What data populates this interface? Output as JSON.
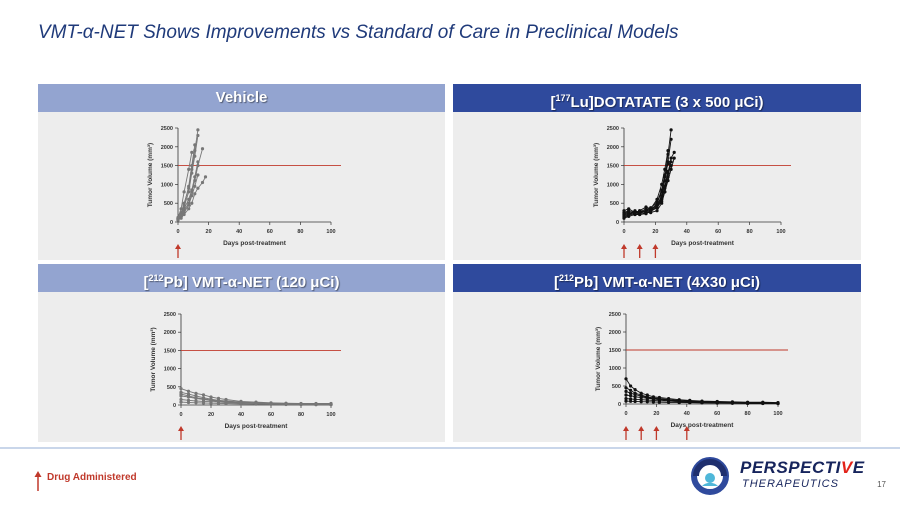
{
  "slide": {
    "title": "VMT-α-NET Shows Improvements vs Standard of Care in Preclinical Models",
    "page_number": "17",
    "legend_label": "Drug Administered",
    "logo": {
      "name_main": "PERSPECTI",
      "name_accent": "V",
      "name_end": "E",
      "subtitle": "THERAPEUTICS"
    }
  },
  "colors": {
    "dark_header": "#2f4a9d",
    "light_header": "#93a4d0",
    "arrow": "#c0392b",
    "threshold": "#c0392b",
    "panel_bg": "#ededed"
  },
  "panels": [
    {
      "header_text": "Vehicle"
    },
    {
      "header_pre": "[",
      "header_sup": "177",
      "header_post": "Lu]DOTATATE (3 x 500 μCi)"
    },
    {
      "header_pre": "[",
      "header_sup": "212",
      "header_post": "Pb] VMT-α-NET (120 μCi)"
    },
    {
      "header_pre": "[",
      "header_sup": "212",
      "header_post": "Pb] VMT-α-NET (4X30 μCi)"
    }
  ],
  "chart_data": [
    {
      "type": "line",
      "panel": "Vehicle",
      "xlabel": "Days post-treatment",
      "ylabel": "Tumor Volume (mm³)",
      "xlim": [
        0,
        100
      ],
      "ylim": [
        0,
        2500
      ],
      "xticks": [
        0,
        20,
        40,
        60,
        80,
        100
      ],
      "yticks": [
        0,
        500,
        1000,
        1500,
        2000,
        2500
      ],
      "threshold": 1500,
      "dose_days": [
        0
      ],
      "marker_color": "#777777",
      "series": [
        {
          "x": [
            0,
            2,
            4,
            7,
            9,
            11,
            13
          ],
          "y": [
            100,
            250,
            500,
            900,
            1400,
            1900,
            2450
          ]
        },
        {
          "x": [
            0,
            2,
            4,
            7,
            9,
            11,
            13
          ],
          "y": [
            80,
            200,
            400,
            800,
            1300,
            1750,
            2300
          ]
        },
        {
          "x": [
            0,
            2,
            4,
            7,
            9,
            11,
            13,
            16
          ],
          "y": [
            90,
            150,
            300,
            500,
            800,
            1100,
            1500,
            1950
          ]
        },
        {
          "x": [
            0,
            2,
            4,
            7,
            9,
            11,
            13,
            16,
            18
          ],
          "y": [
            60,
            100,
            200,
            350,
            500,
            750,
            900,
            1050,
            1200
          ]
        },
        {
          "x": [
            0,
            2,
            4,
            7,
            9
          ],
          "y": [
            120,
            350,
            800,
            1400,
            1850
          ]
        },
        {
          "x": [
            0,
            2,
            4,
            7,
            9,
            11
          ],
          "y": [
            70,
            200,
            450,
            950,
            1500,
            2050
          ]
        },
        {
          "x": [
            0,
            2,
            4,
            7,
            9,
            11,
            13
          ],
          "y": [
            50,
            120,
            250,
            450,
            700,
            950,
            1250
          ]
        },
        {
          "x": [
            0,
            2,
            4,
            7,
            9,
            11,
            13
          ],
          "y": [
            100,
            180,
            350,
            600,
            850,
            1200,
            1600
          ]
        }
      ]
    },
    {
      "type": "line",
      "panel": "[177Lu]DOTATATE (3 x 500 μCi)",
      "xlabel": "Days post-treatment",
      "ylabel": "Tumor Volume (mm³)",
      "xlim": [
        0,
        100
      ],
      "ylim": [
        0,
        2500
      ],
      "xticks": [
        0,
        20,
        40,
        60,
        80,
        100
      ],
      "yticks": [
        0,
        500,
        1000,
        1500,
        2000,
        2500
      ],
      "threshold": 1500,
      "dose_days": [
        0,
        10,
        20
      ],
      "marker_color": "#111111",
      "series": [
        {
          "x": [
            0,
            3,
            7,
            10,
            14,
            17,
            21,
            24,
            26,
            28,
            30
          ],
          "y": [
            200,
            250,
            300,
            250,
            300,
            350,
            450,
            700,
            1100,
            1600,
            2200
          ]
        },
        {
          "x": [
            0,
            3,
            7,
            10,
            14,
            17,
            21,
            24,
            26,
            28,
            30,
            32
          ],
          "y": [
            150,
            200,
            250,
            300,
            250,
            300,
            400,
            600,
            900,
            1300,
            1700,
            1850
          ]
        },
        {
          "x": [
            0,
            3,
            7,
            10,
            14,
            17,
            21,
            24,
            26,
            28,
            30
          ],
          "y": [
            250,
            300,
            200,
            250,
            350,
            300,
            500,
            800,
            1200,
            1800,
            2450
          ]
        },
        {
          "x": [
            0,
            3,
            7,
            10,
            14,
            17,
            21,
            24,
            26,
            28,
            30
          ],
          "y": [
            100,
            150,
            200,
            200,
            250,
            250,
            300,
            500,
            800,
            1200,
            1600
          ]
        },
        {
          "x": [
            0,
            3,
            7,
            10,
            14,
            17,
            21,
            24,
            26,
            28
          ],
          "y": [
            300,
            350,
            250,
            300,
            400,
            350,
            600,
            1000,
            1400,
            1900
          ]
        },
        {
          "x": [
            0,
            3,
            7,
            10,
            14,
            17,
            21,
            24,
            26,
            28,
            30
          ],
          "y": [
            180,
            220,
            260,
            230,
            280,
            330,
            420,
            650,
            950,
            1350,
            1500
          ]
        },
        {
          "x": [
            0,
            3,
            7,
            10,
            14,
            17,
            21,
            24,
            26,
            28,
            30,
            32
          ],
          "y": [
            120,
            180,
            220,
            200,
            220,
            280,
            380,
            550,
            800,
            1100,
            1400,
            1700
          ]
        },
        {
          "x": [
            0,
            3,
            7,
            10,
            14,
            17,
            21,
            24,
            26,
            28
          ],
          "y": [
            220,
            280,
            240,
            280,
            330,
            380,
            520,
            850,
            1250,
            1550
          ]
        }
      ]
    },
    {
      "type": "line",
      "panel": "[212Pb] VMT-α-NET (120 μCi)",
      "xlabel": "Days post-treatment",
      "ylabel": "Tumor Volume (mm³)",
      "xlim": [
        0,
        100
      ],
      "ylim": [
        0,
        2500
      ],
      "xticks": [
        0,
        20,
        40,
        60,
        80,
        100
      ],
      "yticks": [
        0,
        500,
        1000,
        1500,
        2000,
        2500
      ],
      "threshold": 1500,
      "dose_days": [
        0
      ],
      "marker_color": "#777777",
      "series": [
        {
          "x": [
            0,
            5,
            10,
            15,
            20,
            25,
            30,
            40,
            50,
            60,
            70,
            80,
            90,
            100
          ],
          "y": [
            450,
            380,
            320,
            280,
            220,
            180,
            150,
            100,
            80,
            60,
            50,
            40,
            40,
            40
          ]
        },
        {
          "x": [
            0,
            5,
            10,
            15,
            20,
            25,
            30,
            40,
            50,
            60,
            70,
            80,
            90,
            100
          ],
          "y": [
            350,
            300,
            250,
            200,
            160,
            130,
            110,
            80,
            60,
            50,
            40,
            30,
            30,
            30
          ]
        },
        {
          "x": [
            0,
            5,
            10,
            15,
            20,
            25,
            30,
            40,
            50,
            60,
            70,
            80,
            90,
            100
          ],
          "y": [
            250,
            220,
            180,
            150,
            120,
            100,
            90,
            70,
            50,
            40,
            30,
            30,
            20,
            20
          ]
        },
        {
          "x": [
            0,
            5,
            10,
            15,
            20,
            25,
            30,
            40,
            50,
            60,
            70,
            80,
            90,
            100
          ],
          "y": [
            150,
            130,
            110,
            100,
            90,
            80,
            70,
            50,
            40,
            30,
            20,
            20,
            10,
            10
          ]
        },
        {
          "x": [
            0,
            5,
            10,
            15,
            20,
            25,
            30,
            40,
            50,
            60,
            70,
            80,
            90,
            100
          ],
          "y": [
            80,
            70,
            60,
            55,
            50,
            45,
            40,
            30,
            25,
            20,
            15,
            10,
            10,
            10
          ]
        },
        {
          "x": [
            0,
            5,
            10,
            15,
            20,
            25,
            30,
            40,
            50,
            60,
            70,
            80,
            90,
            100
          ],
          "y": [
            300,
            250,
            200,
            170,
            140,
            110,
            90,
            60,
            50,
            40,
            35,
            30,
            25,
            25
          ]
        }
      ]
    },
    {
      "type": "line",
      "panel": "[212Pb] VMT-α-NET (4X30 μCi)",
      "xlabel": "Days post-treatment",
      "ylabel": "Tumor Volume (mm³)",
      "xlim": [
        0,
        100
      ],
      "ylim": [
        0,
        2500
      ],
      "xticks": [
        0,
        20,
        40,
        60,
        80,
        100
      ],
      "yticks": [
        0,
        500,
        1000,
        1500,
        2000,
        2500
      ],
      "threshold": 1500,
      "dose_days": [
        0,
        10,
        20,
        40
      ],
      "marker_color": "#111111",
      "series": [
        {
          "x": [
            0,
            3,
            6,
            10,
            14,
            18,
            22,
            28,
            35,
            42,
            50,
            60,
            70,
            80,
            90,
            100
          ],
          "y": [
            700,
            500,
            400,
            300,
            250,
            200,
            180,
            150,
            120,
            100,
            80,
            70,
            60,
            50,
            50,
            40
          ]
        },
        {
          "x": [
            0,
            3,
            6,
            10,
            14,
            18,
            22,
            28,
            35,
            42,
            50,
            60,
            70,
            80,
            90,
            100
          ],
          "y": [
            450,
            380,
            300,
            250,
            200,
            170,
            150,
            120,
            100,
            80,
            70,
            60,
            50,
            40,
            40,
            30
          ]
        },
        {
          "x": [
            0,
            3,
            6,
            10,
            14,
            18,
            22,
            28,
            35,
            42,
            50,
            60,
            70,
            80,
            90,
            100
          ],
          "y": [
            350,
            300,
            260,
            220,
            180,
            150,
            130,
            110,
            90,
            70,
            60,
            50,
            40,
            30,
            30,
            25
          ]
        },
        {
          "x": [
            0,
            3,
            6,
            10,
            14,
            18,
            22,
            28,
            35,
            42,
            50,
            60,
            70,
            80,
            90,
            100
          ],
          "y": [
            250,
            230,
            200,
            180,
            160,
            140,
            120,
            100,
            80,
            60,
            50,
            40,
            30,
            30,
            20,
            20
          ]
        },
        {
          "x": [
            0,
            3,
            6,
            10,
            14,
            18,
            22,
            28,
            35,
            42,
            50,
            60,
            70,
            80,
            90,
            100
          ],
          "y": [
            150,
            140,
            130,
            120,
            110,
            100,
            90,
            80,
            60,
            50,
            40,
            30,
            25,
            20,
            20,
            15
          ]
        },
        {
          "x": [
            0,
            3,
            6,
            10,
            14,
            18,
            22,
            28,
            35,
            42,
            50,
            60,
            70,
            80,
            90,
            100
          ],
          "y": [
            80,
            75,
            70,
            65,
            60,
            55,
            50,
            45,
            40,
            35,
            30,
            25,
            20,
            15,
            15,
            10
          ]
        }
      ]
    }
  ]
}
